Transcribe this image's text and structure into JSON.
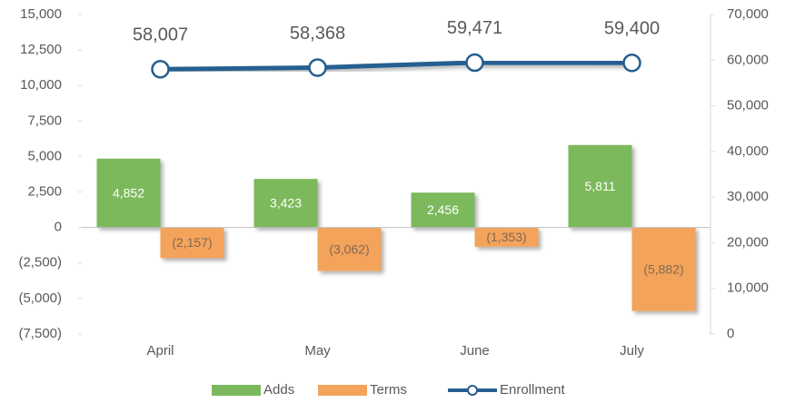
{
  "chart_data": {
    "type": "bar",
    "categories": [
      "April",
      "May",
      "June",
      "July"
    ],
    "series": [
      {
        "name": "Adds",
        "type": "bar",
        "color": "#7cb95c",
        "values": [
          4852,
          3423,
          2456,
          5811
        ],
        "value_labels": [
          "4,852",
          "3,423",
          "2,456",
          "5,811"
        ]
      },
      {
        "name": "Terms",
        "type": "bar",
        "color": "#f4a35a",
        "values": [
          -2157,
          -3062,
          -1353,
          -5882
        ],
        "value_labels": [
          "(2,157)",
          "(3,062)",
          "(1,353)",
          "(5,882)"
        ]
      },
      {
        "name": "Enrollment",
        "type": "line",
        "axis": "y2",
        "color": "#255e91",
        "values": [
          58007,
          58368,
          59471,
          59400
        ],
        "value_labels": [
          "58,007",
          "58,368",
          "59,471",
          "59,400"
        ]
      }
    ],
    "ylim": [
      -7500,
      15000
    ],
    "yticks": [
      {
        "value": -7500,
        "label": "(7,500)"
      },
      {
        "value": -5000,
        "label": "(5,000)"
      },
      {
        "value": -2500,
        "label": "(2,500)"
      },
      0,
      {
        "value": 2500,
        "label": "2,500"
      },
      {
        "value": 5000,
        "label": "5,000"
      },
      {
        "value": 7500,
        "label": "7,500"
      },
      {
        "value": 10000,
        "label": "10,000"
      },
      {
        "value": 12500,
        "label": "12,500"
      },
      {
        "value": 15000,
        "label": "15,000"
      }
    ],
    "y2lim": [
      0,
      70000
    ],
    "y2ticks": [
      0,
      {
        "value": 10000,
        "label": "10,000"
      },
      {
        "value": 20000,
        "label": "20,000"
      },
      {
        "value": 30000,
        "label": "30,000"
      },
      {
        "value": 40000,
        "label": "40,000"
      },
      {
        "value": 50000,
        "label": "50,000"
      },
      {
        "value": 60000,
        "label": "60,000"
      },
      {
        "value": 70000,
        "label": "70,000"
      }
    ],
    "legend": "bottom"
  }
}
